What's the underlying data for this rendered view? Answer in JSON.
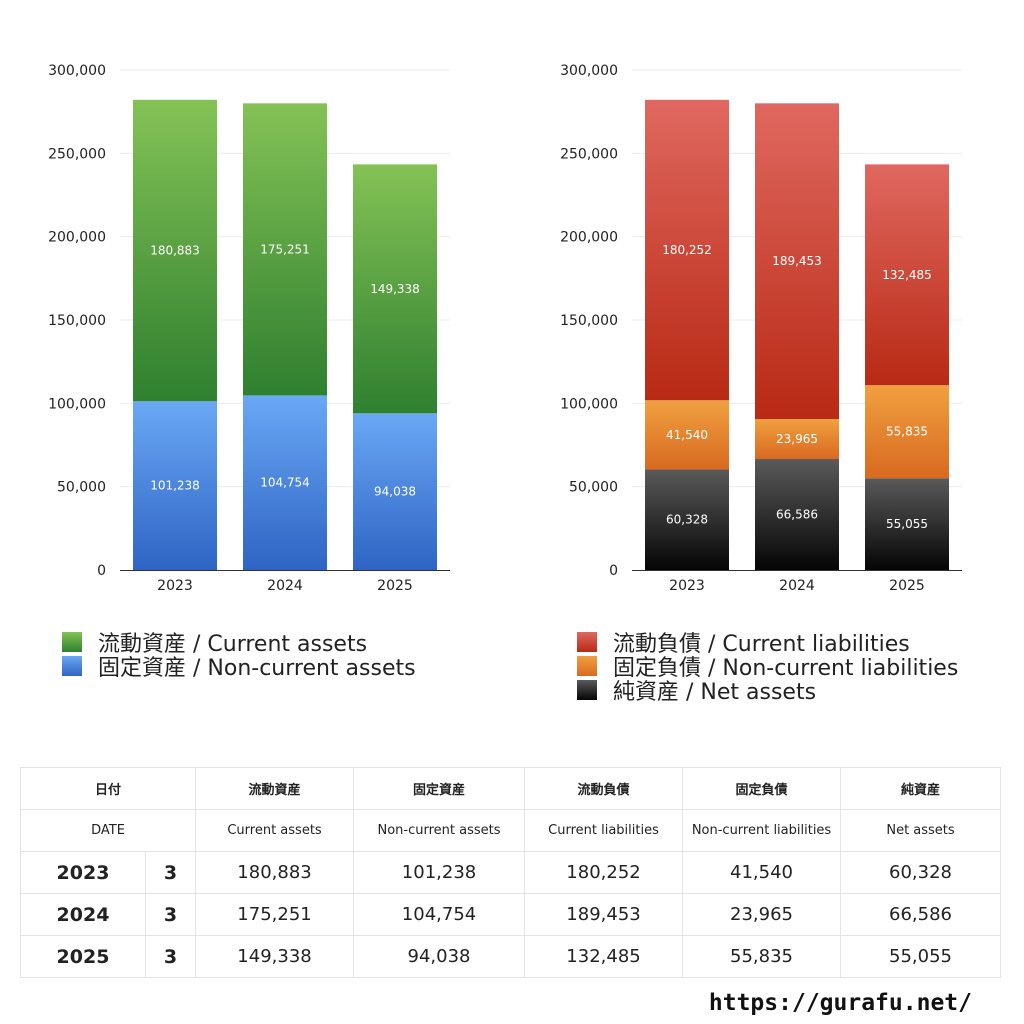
{
  "chart_data": [
    {
      "type": "bar",
      "stacked": true,
      "categories": [
        "2023",
        "2024",
        "2025"
      ],
      "ylim": [
        0,
        300000
      ],
      "yticks": [
        "0",
        "50,000",
        "100,000",
        "150,000",
        "200,000",
        "250,000",
        "300,000"
      ],
      "grid": true,
      "series": [
        {
          "name": "固定資産 / Non-current assets",
          "values": [
            101238,
            104754,
            94038
          ],
          "labels": [
            "101,238",
            "104,754",
            "94,038"
          ],
          "color_top": "#6aa8f5",
          "color_bottom": "#2f64c4"
        },
        {
          "name": "流動資産 / Current assets",
          "values": [
            180883,
            175251,
            149338
          ],
          "labels": [
            "180,883",
            "175,251",
            "149,338"
          ],
          "color_top": "#84c255",
          "color_bottom": "#2f8030"
        }
      ],
      "legend_order": [
        1,
        0
      ]
    },
    {
      "type": "bar",
      "stacked": true,
      "categories": [
        "2023",
        "2024",
        "2025"
      ],
      "ylim": [
        0,
        300000
      ],
      "yticks": [
        "0",
        "50,000",
        "100,000",
        "150,000",
        "200,000",
        "250,000",
        "300,000"
      ],
      "grid": true,
      "series": [
        {
          "name": "純資産 / Net assets",
          "values": [
            60328,
            66586,
            55055
          ],
          "labels": [
            "60,328",
            "66,586",
            "55,055"
          ],
          "color_top": "#5a5a5a",
          "color_bottom": "#050505"
        },
        {
          "name": "固定負債 / Non-current liabilities",
          "values": [
            41540,
            23965,
            55835
          ],
          "labels": [
            "41,540",
            "23,965",
            "55,835"
          ],
          "color_top": "#f0a040",
          "color_bottom": "#d86a20"
        },
        {
          "name": "流動負債 / Current liabilities",
          "values": [
            180252,
            189453,
            132485
          ],
          "labels": [
            "180,252",
            "189,453",
            "132,485"
          ],
          "color_top": "#e06860",
          "color_bottom": "#b82a14"
        }
      ],
      "legend_order": [
        2,
        1,
        0
      ]
    }
  ],
  "table": {
    "headers_ja": [
      "日付",
      "流動資産",
      "固定資産",
      "流動負債",
      "固定負債",
      "純資産"
    ],
    "headers_en": [
      "DATE",
      "Current assets",
      "Non-current assets",
      "Current liabilities",
      "Non-current liabilities",
      "Net assets"
    ],
    "rows": [
      {
        "year": "2023",
        "month": "3",
        "values": [
          "180,883",
          "101,238",
          "180,252",
          "41,540",
          "60,328"
        ]
      },
      {
        "year": "2024",
        "month": "3",
        "values": [
          "175,251",
          "104,754",
          "189,453",
          "23,965",
          "66,586"
        ]
      },
      {
        "year": "2025",
        "month": "3",
        "values": [
          "149,338",
          "94,038",
          "132,485",
          "55,835",
          "55,055"
        ]
      }
    ]
  },
  "footer": {
    "url": "https://gurafu.net/"
  }
}
